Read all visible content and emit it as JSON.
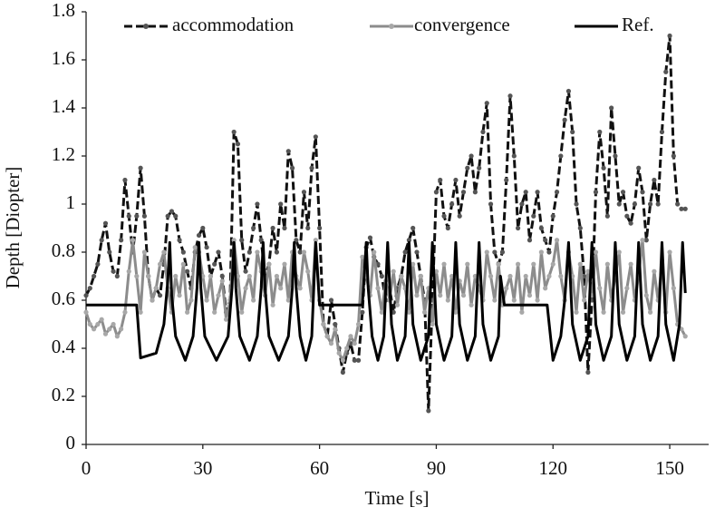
{
  "chart_data": {
    "type": "line",
    "xlabel": "Time [s]",
    "ylabel": "Depth [Diopter]",
    "legend": "top",
    "xlim": [
      0,
      160
    ],
    "ylim": [
      0,
      1.8
    ],
    "xticks": [
      0,
      30,
      60,
      90,
      120,
      150
    ],
    "yticks": [
      0,
      0.2,
      0.4,
      0.6,
      0.8,
      1,
      1.2,
      1.4,
      1.6,
      1.8
    ],
    "x": [
      0,
      1,
      2,
      3,
      4,
      5,
      6,
      7,
      8,
      9,
      10,
      11,
      12,
      13,
      14,
      15,
      16,
      17,
      18,
      19,
      20,
      21,
      22,
      23,
      24,
      25,
      26,
      27,
      28,
      29,
      30,
      31,
      32,
      33,
      34,
      35,
      36,
      37,
      38,
      39,
      40,
      41,
      42,
      43,
      44,
      45,
      46,
      47,
      48,
      49,
      50,
      51,
      52,
      53,
      54,
      55,
      56,
      57,
      58,
      59,
      60,
      61,
      62,
      63,
      64,
      65,
      66,
      67,
      68,
      69,
      70,
      71,
      72,
      73,
      74,
      75,
      76,
      77,
      78,
      79,
      80,
      81,
      82,
      83,
      84,
      85,
      86,
      87,
      88,
      89,
      90,
      91,
      92,
      93,
      94,
      95,
      96,
      97,
      98,
      99,
      100,
      101,
      102,
      103,
      104,
      105,
      106,
      107,
      108,
      109,
      110,
      111,
      112,
      113,
      114,
      115,
      116,
      117,
      118,
      119,
      120,
      121,
      122,
      123,
      124,
      125,
      126,
      127,
      128,
      129,
      130,
      131,
      132,
      133,
      134,
      135,
      136,
      137,
      138,
      139,
      140,
      141,
      142,
      143,
      144,
      145,
      146,
      147,
      148,
      149,
      150,
      151,
      152,
      153,
      154
    ],
    "series": [
      {
        "name": "accommodation",
        "color": "#111111",
        "marker_color": "#555555",
        "dash": true,
        "markers": true,
        "values": [
          0.62,
          0.65,
          0.7,
          0.75,
          0.85,
          0.92,
          0.8,
          0.72,
          0.7,
          0.85,
          1.1,
          0.95,
          0.8,
          0.95,
          1.15,
          0.95,
          0.7,
          0.6,
          0.65,
          0.62,
          0.75,
          0.95,
          0.97,
          0.95,
          0.85,
          0.8,
          0.72,
          0.65,
          0.8,
          0.87,
          0.9,
          0.82,
          0.7,
          0.75,
          0.8,
          0.7,
          0.55,
          0.6,
          1.3,
          1.25,
          0.85,
          0.72,
          0.8,
          0.9,
          1,
          0.85,
          0.7,
          0.75,
          0.9,
          0.8,
          1,
          0.9,
          1.22,
          1.15,
          0.85,
          0.8,
          1.05,
          0.9,
          1.15,
          1.28,
          0.9,
          0.5,
          0.45,
          0.6,
          0.5,
          0.4,
          0.3,
          0.38,
          0.42,
          0.35,
          0.35,
          0.55,
          0.82,
          0.86,
          0.78,
          0.75,
          0.7,
          0.6,
          0.65,
          0.55,
          0.65,
          0.7,
          0.8,
          0.85,
          0.9,
          0.8,
          0.7,
          0.6,
          0.14,
          0.6,
          1.05,
          1.1,
          0.95,
          0.9,
          1,
          1.1,
          0.95,
          1.05,
          1.15,
          1.2,
          1.05,
          1.15,
          1.3,
          1.42,
          1,
          0.8,
          0.75,
          0.8,
          1.1,
          1.45,
          1.2,
          0.9,
          1,
          1.05,
          0.85,
          0.95,
          1.05,
          0.9,
          0.85,
          0.8,
          0.95,
          1.05,
          1.2,
          1.35,
          1.47,
          1.3,
          1,
          0.9,
          0.7,
          0.3,
          0.6,
          1.05,
          1.3,
          1.15,
          0.95,
          1.4,
          1.2,
          1,
          1.05,
          0.95,
          0.92,
          1,
          1.15,
          1.05,
          0.85,
          1,
          1.1,
          1,
          1.3,
          1.55,
          1.7,
          1.2,
          1,
          0.98,
          0.98
        ]
      },
      {
        "name": "convergence",
        "color": "#8c8c8c",
        "marker_color": "#a8a8a8",
        "dash": false,
        "markers": true,
        "values": [
          0.55,
          0.5,
          0.48,
          0.5,
          0.52,
          0.46,
          0.48,
          0.5,
          0.45,
          0.48,
          0.55,
          0.72,
          0.85,
          0.7,
          0.55,
          0.8,
          0.7,
          0.6,
          0.65,
          0.75,
          0.8,
          0.65,
          0.55,
          0.7,
          0.62,
          0.75,
          0.55,
          0.6,
          0.82,
          0.8,
          0.7,
          0.6,
          0.7,
          0.55,
          0.62,
          0.68,
          0.52,
          0.6,
          0.85,
          0.7,
          0.55,
          0.65,
          0.7,
          0.6,
          0.8,
          0.72,
          0.62,
          0.75,
          0.58,
          0.7,
          0.65,
          0.75,
          0.6,
          0.8,
          0.7,
          0.65,
          0.8,
          0.72,
          0.6,
          0.85,
          0.6,
          0.5,
          0.45,
          0.42,
          0.48,
          0.38,
          0.35,
          0.4,
          0.45,
          0.42,
          0.5,
          0.78,
          0.7,
          0.62,
          0.8,
          0.65,
          0.55,
          0.68,
          0.6,
          0.72,
          0.58,
          0.7,
          0.65,
          0.55,
          0.75,
          0.62,
          0.7,
          0.55,
          0.65,
          0.5,
          0.72,
          0.62,
          0.75,
          0.6,
          0.7,
          0.55,
          0.68,
          0.62,
          0.75,
          0.58,
          0.7,
          0.65,
          0.6,
          0.8,
          0.7,
          0.6,
          0.75,
          0.58,
          0.65,
          0.7,
          0.6,
          0.75,
          0.55,
          0.7,
          0.62,
          0.75,
          0.6,
          0.8,
          0.65,
          0.7,
          0.75,
          0.85,
          0.7,
          0.6,
          0.8,
          0.7,
          0.55,
          0.75,
          0.6,
          0.72,
          0.62,
          0.8,
          0.65,
          0.55,
          0.75,
          0.6,
          0.7,
          0.8,
          0.55,
          0.65,
          0.75,
          0.6,
          0.7,
          0.85,
          0.62,
          0.55,
          0.72,
          0.6,
          0.75,
          0.55,
          0.8,
          0.65,
          0.5,
          0.48,
          0.45
        ]
      },
      {
        "name": "Ref.",
        "color": "#000000",
        "dash": false,
        "markers": false,
        "x": [
          0,
          13,
          14,
          18,
          20,
          21,
          21.5,
          22,
          23,
          25.5,
          27.5,
          28.5,
          29,
          29.5,
          30.5,
          33.5,
          36.5,
          37.5,
          38,
          38.5,
          39.5,
          42,
          44,
          45,
          45.5,
          46,
          47,
          49.5,
          52,
          53,
          53.5,
          54,
          55,
          56.5,
          58,
          59,
          60,
          71,
          72,
          72.5,
          73.5,
          75,
          76.5,
          77.5,
          78.5,
          80,
          82,
          83,
          84,
          86,
          88,
          89,
          90,
          92,
          94,
          95,
          96,
          98,
          100,
          101,
          102,
          104,
          106,
          106.5,
          107.5,
          118.5,
          120,
          122,
          123,
          124,
          125,
          127,
          129,
          130,
          131,
          133,
          135,
          136,
          137,
          139,
          141,
          142,
          143,
          145,
          147,
          148,
          149,
          151,
          152.5,
          153.3,
          154
        ],
        "values": [
          0.58,
          0.58,
          0.36,
          0.38,
          0.5,
          0.68,
          0.84,
          0.62,
          0.45,
          0.35,
          0.45,
          0.65,
          0.84,
          0.65,
          0.45,
          0.35,
          0.45,
          0.65,
          0.84,
          0.65,
          0.45,
          0.35,
          0.45,
          0.65,
          0.84,
          0.65,
          0.45,
          0.35,
          0.45,
          0.65,
          0.84,
          0.65,
          0.45,
          0.35,
          0.45,
          0.84,
          0.58,
          0.58,
          0.84,
          0.65,
          0.45,
          0.35,
          0.45,
          0.84,
          0.5,
          0.35,
          0.45,
          0.84,
          0.5,
          0.35,
          0.45,
          0.84,
          0.5,
          0.35,
          0.45,
          0.84,
          0.5,
          0.35,
          0.45,
          0.84,
          0.5,
          0.35,
          0.45,
          0.7,
          0.58,
          0.58,
          0.35,
          0.45,
          0.6,
          0.84,
          0.5,
          0.35,
          0.45,
          0.84,
          0.5,
          0.35,
          0.45,
          0.84,
          0.5,
          0.35,
          0.45,
          0.84,
          0.5,
          0.35,
          0.45,
          0.84,
          0.5,
          0.35,
          0.5,
          0.84,
          0.63
        ]
      }
    ]
  }
}
